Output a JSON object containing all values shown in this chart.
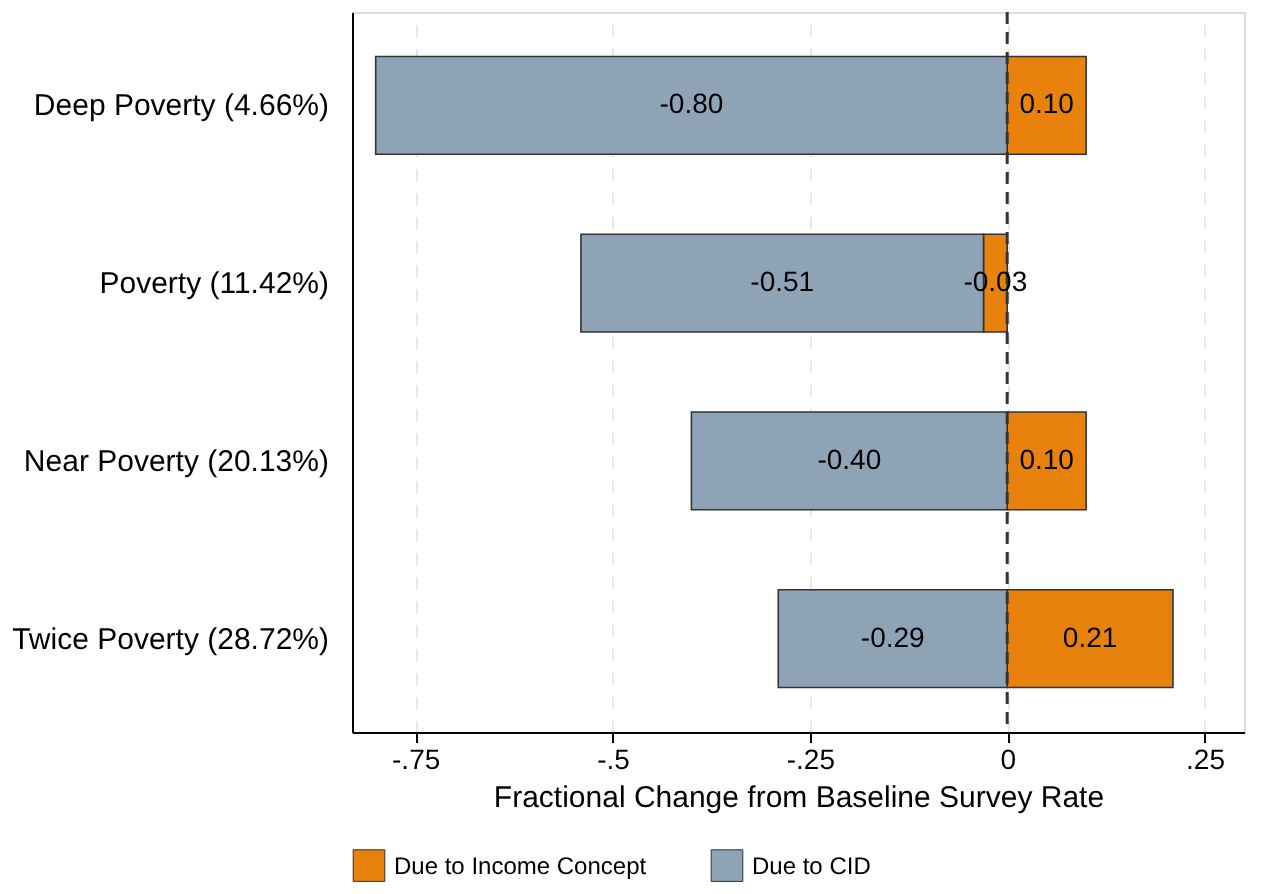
{
  "chart_data": {
    "type": "bar",
    "orientation": "horizontal",
    "stacked": true,
    "categories": [
      "Deep Poverty (4.66%)",
      "Poverty (11.42%)",
      "Near Poverty (20.13%)",
      "Twice Poverty (28.72%)"
    ],
    "series": [
      {
        "name": "Due to Income Concept",
        "color": "#e8820c",
        "values": [
          0.1,
          -0.03,
          0.1,
          0.21
        ],
        "value_labels": [
          "0.10",
          "-0.03",
          "0.10",
          "0.21"
        ]
      },
      {
        "name": "Due to CID",
        "color": "#8fa3b7",
        "values": [
          -0.8,
          -0.51,
          -0.4,
          -0.29
        ],
        "value_labels": [
          "-0.80",
          "-0.51",
          "-0.40",
          "-0.29"
        ]
      }
    ],
    "xlabel": "Fractional Change from Baseline Survey Rate",
    "xlim": [
      -0.83,
      0.3
    ],
    "xticks": [
      {
        "value": -0.75,
        "label": "-.75"
      },
      {
        "value": -0.5,
        "label": "-.5"
      },
      {
        "value": -0.25,
        "label": "-.25"
      },
      0,
      {
        "value": 0.25,
        "label": ".25"
      }
    ],
    "ref_lines": [
      {
        "axis": "x",
        "value": 0,
        "line_style": "dashed",
        "color": "#333333"
      }
    ],
    "grid": "x",
    "legend": "bottom"
  }
}
